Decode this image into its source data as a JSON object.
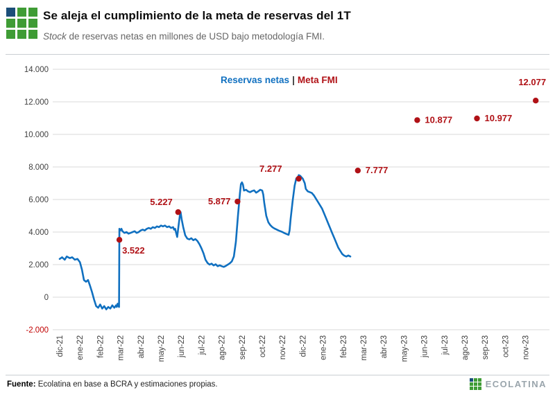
{
  "header": {
    "title": "Se aleja el cumplimiento de la meta de reservas del 1T",
    "subtitle_italic": "Stock",
    "subtitle_rest": " de reservas netas en millones de USD bajo metodología FMI."
  },
  "legend": {
    "series1": "Reservas netas",
    "separator": "|",
    "series2": "Meta FMI"
  },
  "footer": {
    "source_label": "Fuente:",
    "source_text": " Ecolatina en base a BCRA y estimaciones propias.",
    "brand": "ECOLATINA"
  },
  "colors": {
    "line": "#1070C0",
    "target": "#B01116",
    "grid": "#D9D9D9",
    "axis_text": "#404040",
    "negative_tick": "#C00000",
    "logo_blue": "#1B4E79",
    "logo_green": "#3F9C35",
    "brand_gray": "#9AA5AC"
  },
  "logo": {
    "pattern": [
      [
        "blue",
        "green",
        "green"
      ],
      [
        "green",
        "green",
        "green"
      ],
      [
        "green",
        "green",
        "green"
      ]
    ]
  },
  "chart_data": {
    "type": "line",
    "title": "Se aleja el cumplimiento de la meta de reservas del 1T",
    "subtitle": "Stock de reservas netas en millones de USD bajo metodología FMI.",
    "ylabel": "",
    "xlabel": "",
    "unit": "millones de USD",
    "ylim": [
      -2000,
      14000
    ],
    "grid": "horizontal",
    "legend_position": "top-center",
    "y_ticks": [
      {
        "value": 14000,
        "label": "14.000"
      },
      {
        "value": 12000,
        "label": "12.000"
      },
      {
        "value": 10000,
        "label": "10.000"
      },
      {
        "value": 8000,
        "label": "8.000"
      },
      {
        "value": 6000,
        "label": "6.000"
      },
      {
        "value": 4000,
        "label": "4.000"
      },
      {
        "value": 2000,
        "label": "2.000"
      },
      {
        "value": 0,
        "label": "0"
      },
      {
        "value": -2000,
        "label": "-2.000"
      }
    ],
    "x_tick_labels": [
      "dic-21",
      "ene-22",
      "feb-22",
      "mar-22",
      "abr-22",
      "may-22",
      "jun-22",
      "jul-22",
      "ago-22",
      "sep-22",
      "oct-22",
      "nov-22",
      "dic-22",
      "ene-23",
      "feb-23",
      "mar-23",
      "abr-23",
      "may-23",
      "jun-23",
      "jul-23",
      "ago-23",
      "sep-23",
      "oct-23",
      "nov-23"
    ],
    "series": [
      {
        "name": "Reservas netas",
        "type": "line",
        "points": [
          [
            0,
            2350
          ],
          [
            0.12,
            2450
          ],
          [
            0.25,
            2300
          ],
          [
            0.35,
            2500
          ],
          [
            0.5,
            2400
          ],
          [
            0.62,
            2450
          ],
          [
            0.75,
            2300
          ],
          [
            0.88,
            2350
          ],
          [
            1.0,
            2150
          ],
          [
            1.1,
            1700
          ],
          [
            1.2,
            1050
          ],
          [
            1.3,
            950
          ],
          [
            1.4,
            1050
          ],
          [
            1.5,
            700
          ],
          [
            1.6,
            300
          ],
          [
            1.7,
            -150
          ],
          [
            1.8,
            -550
          ],
          [
            1.9,
            -650
          ],
          [
            2.0,
            -450
          ],
          [
            2.1,
            -700
          ],
          [
            2.2,
            -550
          ],
          [
            2.3,
            -750
          ],
          [
            2.4,
            -600
          ],
          [
            2.5,
            -700
          ],
          [
            2.6,
            -500
          ],
          [
            2.7,
            -650
          ],
          [
            2.78,
            -500
          ],
          [
            2.82,
            -600
          ],
          [
            2.86,
            -400
          ],
          [
            2.9,
            -550
          ],
          [
            2.93,
            -600
          ],
          [
            2.95,
            4200
          ],
          [
            3.0,
            4100
          ],
          [
            3.05,
            4200
          ],
          [
            3.1,
            4050
          ],
          [
            3.2,
            3950
          ],
          [
            3.3,
            4000
          ],
          [
            3.4,
            3900
          ],
          [
            3.5,
            3950
          ],
          [
            3.6,
            4000
          ],
          [
            3.7,
            4050
          ],
          [
            3.8,
            3950
          ],
          [
            3.9,
            4000
          ],
          [
            4.0,
            4100
          ],
          [
            4.1,
            4150
          ],
          [
            4.2,
            4100
          ],
          [
            4.3,
            4200
          ],
          [
            4.4,
            4250
          ],
          [
            4.5,
            4200
          ],
          [
            4.6,
            4300
          ],
          [
            4.7,
            4250
          ],
          [
            4.8,
            4350
          ],
          [
            4.9,
            4300
          ],
          [
            5.0,
            4400
          ],
          [
            5.1,
            4350
          ],
          [
            5.2,
            4400
          ],
          [
            5.3,
            4300
          ],
          [
            5.4,
            4350
          ],
          [
            5.5,
            4250
          ],
          [
            5.6,
            4300
          ],
          [
            5.65,
            4150
          ],
          [
            5.7,
            4200
          ],
          [
            5.75,
            3950
          ],
          [
            5.8,
            3700
          ],
          [
            5.87,
            4400
          ],
          [
            5.93,
            5000
          ],
          [
            5.97,
            5227
          ],
          [
            6.02,
            4800
          ],
          [
            6.1,
            4300
          ],
          [
            6.2,
            3800
          ],
          [
            6.3,
            3600
          ],
          [
            6.4,
            3550
          ],
          [
            6.5,
            3620
          ],
          [
            6.6,
            3500
          ],
          [
            6.7,
            3570
          ],
          [
            6.8,
            3450
          ],
          [
            6.9,
            3250
          ],
          [
            7.0,
            3000
          ],
          [
            7.1,
            2700
          ],
          [
            7.2,
            2300
          ],
          [
            7.3,
            2100
          ],
          [
            7.4,
            2000
          ],
          [
            7.5,
            2060
          ],
          [
            7.6,
            1950
          ],
          [
            7.7,
            2020
          ],
          [
            7.8,
            1900
          ],
          [
            7.9,
            1960
          ],
          [
            8.0,
            1900
          ],
          [
            8.1,
            1860
          ],
          [
            8.2,
            1920
          ],
          [
            8.3,
            2000
          ],
          [
            8.4,
            2080
          ],
          [
            8.5,
            2200
          ],
          [
            8.6,
            2500
          ],
          [
            8.7,
            3400
          ],
          [
            8.8,
            5000
          ],
          [
            8.9,
            6400
          ],
          [
            8.95,
            6950
          ],
          [
            9.0,
            7050
          ],
          [
            9.05,
            6900
          ],
          [
            9.1,
            6550
          ],
          [
            9.2,
            6600
          ],
          [
            9.3,
            6500
          ],
          [
            9.4,
            6450
          ],
          [
            9.5,
            6520
          ],
          [
            9.6,
            6560
          ],
          [
            9.7,
            6420
          ],
          [
            9.8,
            6500
          ],
          [
            9.9,
            6600
          ],
          [
            10.0,
            6550
          ],
          [
            10.05,
            6300
          ],
          [
            10.1,
            5800
          ],
          [
            10.2,
            5000
          ],
          [
            10.3,
            4600
          ],
          [
            10.4,
            4420
          ],
          [
            10.5,
            4300
          ],
          [
            10.6,
            4220
          ],
          [
            10.7,
            4160
          ],
          [
            10.8,
            4100
          ],
          [
            10.9,
            4050
          ],
          [
            11.0,
            4000
          ],
          [
            11.1,
            3930
          ],
          [
            11.2,
            3880
          ],
          [
            11.3,
            3830
          ],
          [
            11.35,
            4100
          ],
          [
            11.4,
            4800
          ],
          [
            11.5,
            5900
          ],
          [
            11.6,
            6850
          ],
          [
            11.68,
            7300
          ],
          [
            11.73,
            7200
          ],
          [
            11.8,
            7500
          ],
          [
            11.88,
            7450
          ],
          [
            11.95,
            7350
          ],
          [
            12.0,
            7280
          ],
          [
            12.1,
            7000
          ],
          [
            12.15,
            6650
          ],
          [
            12.25,
            6500
          ],
          [
            12.35,
            6450
          ],
          [
            12.45,
            6400
          ],
          [
            12.55,
            6250
          ],
          [
            12.65,
            6050
          ],
          [
            12.75,
            5850
          ],
          [
            12.85,
            5650
          ],
          [
            12.95,
            5450
          ],
          [
            13.05,
            5150
          ],
          [
            13.15,
            4850
          ],
          [
            13.25,
            4550
          ],
          [
            13.35,
            4250
          ],
          [
            13.45,
            3950
          ],
          [
            13.55,
            3650
          ],
          [
            13.65,
            3350
          ],
          [
            13.75,
            3050
          ],
          [
            13.85,
            2850
          ],
          [
            13.95,
            2650
          ],
          [
            14.05,
            2550
          ],
          [
            14.15,
            2500
          ],
          [
            14.25,
            2560
          ],
          [
            14.35,
            2500
          ]
        ]
      },
      {
        "name": "Meta FMI",
        "type": "scatter",
        "points": [
          {
            "month": 2.95,
            "value": 3522,
            "label": "3.522",
            "dx": 4,
            "dy": 20,
            "anchor": "start"
          },
          {
            "month": 5.85,
            "value": 5227,
            "label": "5.227",
            "dx": -8,
            "dy": -10,
            "anchor": "end"
          },
          {
            "month": 8.78,
            "value": 5877,
            "label": "5.877",
            "dx": -10,
            "dy": 4,
            "anchor": "end"
          },
          {
            "month": 11.8,
            "value": 7277,
            "label": "7.277",
            "dx": -24,
            "dy": -10,
            "anchor": "end"
          },
          {
            "month": 14.72,
            "value": 7777,
            "label": "7.777",
            "dx": 11,
            "dy": 4,
            "anchor": "start"
          },
          {
            "month": 17.65,
            "value": 10877,
            "label": "10.877",
            "dx": 11,
            "dy": 4,
            "anchor": "start"
          },
          {
            "month": 20.6,
            "value": 10977,
            "label": "10.977",
            "dx": 11,
            "dy": 4,
            "anchor": "start"
          },
          {
            "month": 23.5,
            "value": 12077,
            "label": "12.077",
            "dx": -5,
            "dy": -22,
            "anchor": "middle"
          }
        ]
      }
    ]
  }
}
